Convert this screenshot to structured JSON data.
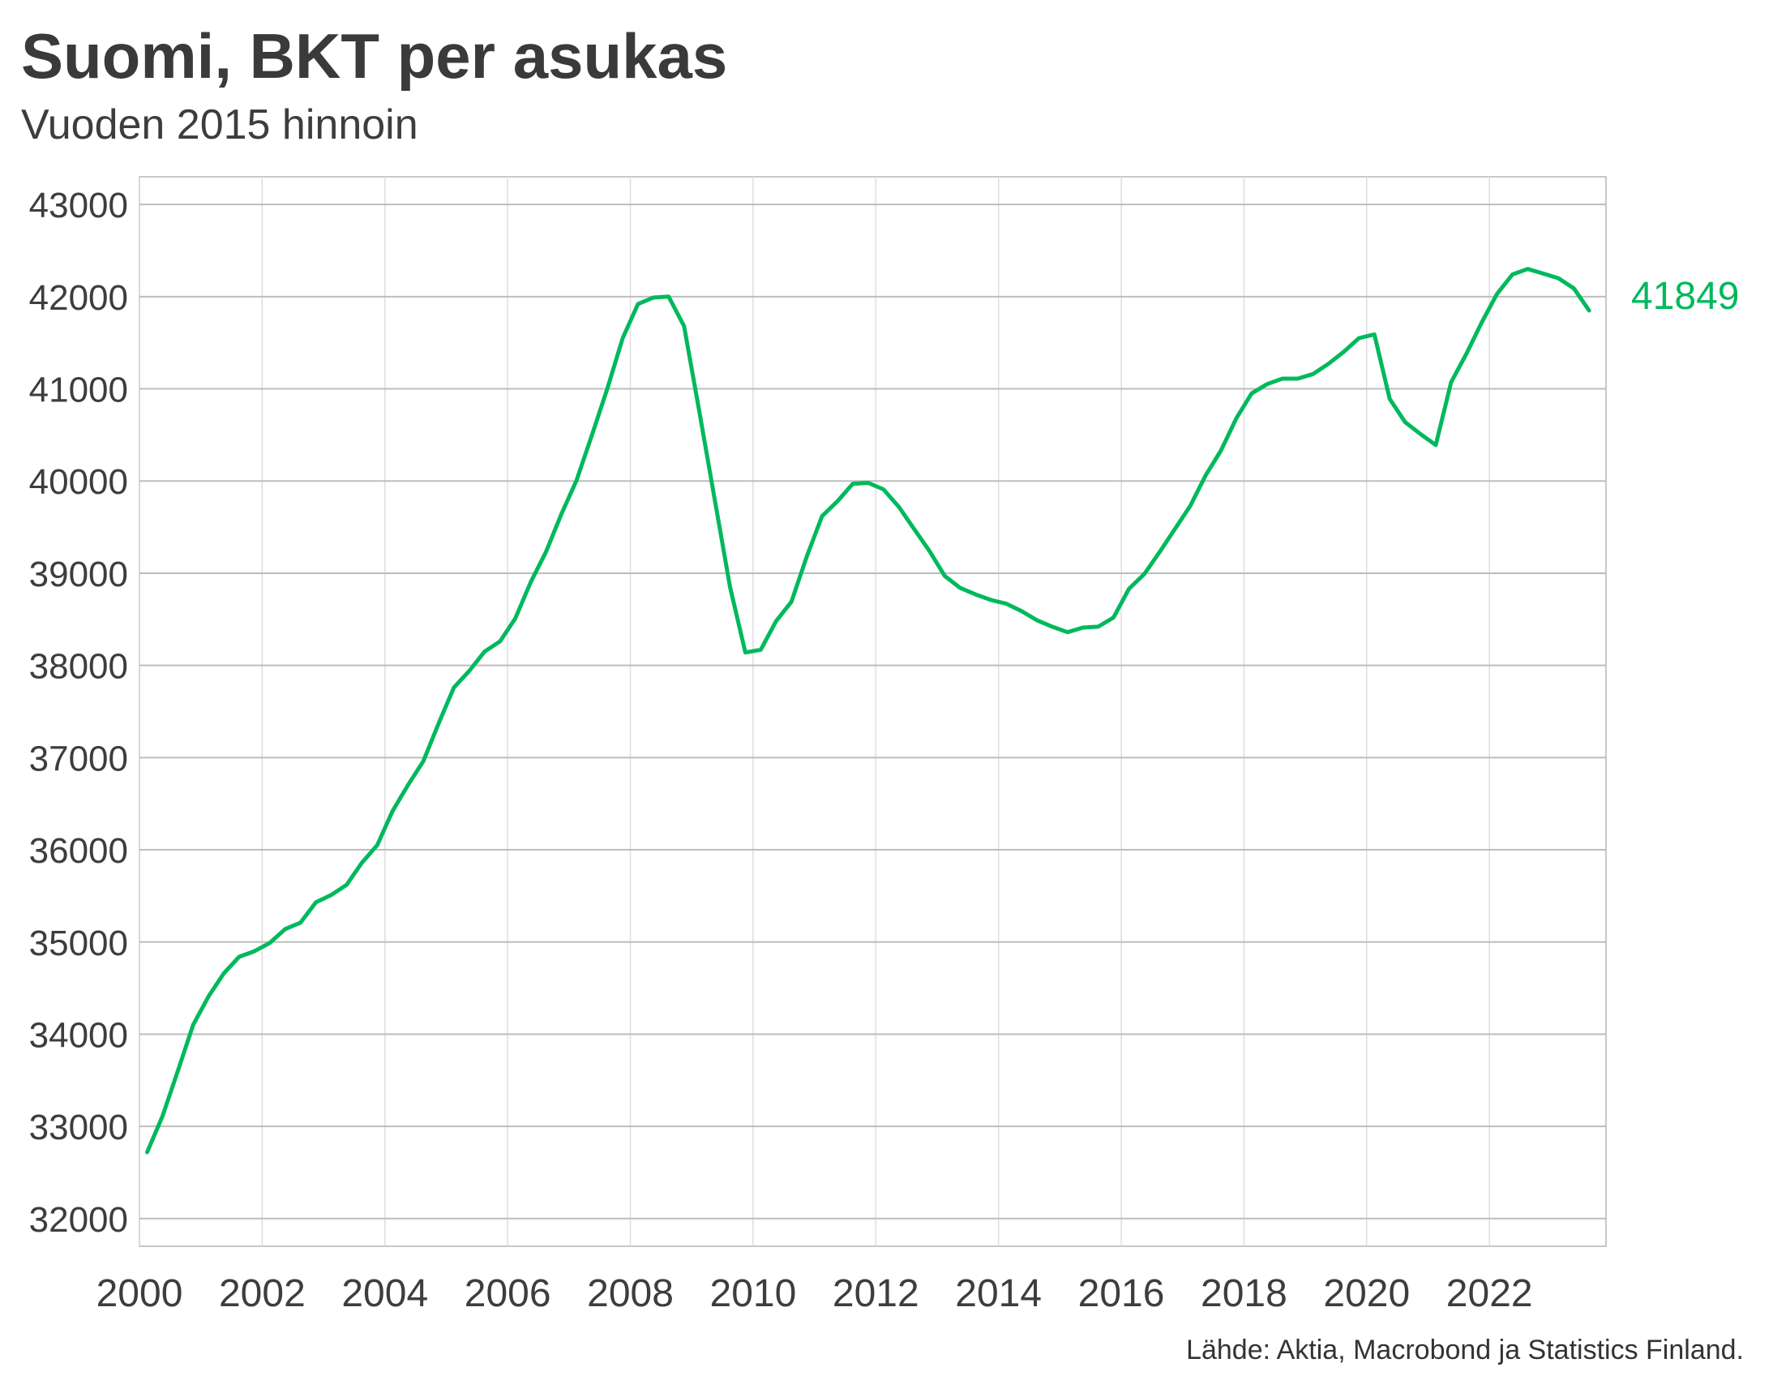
{
  "chart_data": {
    "type": "line",
    "title": "Suomi, BKT per asukas",
    "subtitle": "Vuoden 2015 hinnoin",
    "source": "Lähde: Aktia, Macrobond ja Statistics Finland.",
    "xlabel": "",
    "ylabel": "",
    "xlim": [
      2000,
      2023.9
    ],
    "ylim": [
      31700,
      43300
    ],
    "x_ticks": [
      2000,
      2002,
      2004,
      2006,
      2008,
      2010,
      2012,
      2014,
      2016,
      2018,
      2020,
      2022
    ],
    "y_ticks": [
      32000,
      33000,
      34000,
      35000,
      36000,
      37000,
      38000,
      39000,
      40000,
      41000,
      42000,
      43000
    ],
    "grid": true,
    "legend": "none",
    "end_label": "41849",
    "color": "#00b95c",
    "series": [
      {
        "x": [
          2000.125,
          2000.375,
          2000.625,
          2000.875,
          2001.125,
          2001.375,
          2001.625,
          2001.875,
          2002.125,
          2002.375,
          2002.625,
          2002.875,
          2003.125,
          2003.375,
          2003.625,
          2003.875,
          2004.125,
          2004.375,
          2004.625,
          2004.875,
          2005.125,
          2005.375,
          2005.625,
          2005.875,
          2006.125,
          2006.375,
          2006.625,
          2006.875,
          2007.125,
          2007.375,
          2007.625,
          2007.875,
          2008.125,
          2008.375,
          2008.625,
          2008.875,
          2009.125,
          2009.375,
          2009.625,
          2009.875,
          2010.125,
          2010.375,
          2010.625,
          2010.875,
          2011.125,
          2011.375,
          2011.625,
          2011.875,
          2012.125,
          2012.375,
          2012.625,
          2012.875,
          2013.125,
          2013.375,
          2013.625,
          2013.875,
          2014.125,
          2014.375,
          2014.625,
          2014.875,
          2015.125,
          2015.375,
          2015.625,
          2015.875,
          2016.125,
          2016.375,
          2016.625,
          2016.875,
          2017.125,
          2017.375,
          2017.625,
          2017.875,
          2018.125,
          2018.375,
          2018.625,
          2018.875,
          2019.125,
          2019.375,
          2019.625,
          2019.875,
          2020.125,
          2020.375,
          2020.625,
          2020.875,
          2021.125,
          2021.375,
          2021.625,
          2021.875,
          2022.125,
          2022.375,
          2022.625,
          2022.875,
          2023.125,
          2023.375,
          2023.625
        ],
        "values": [
          32720,
          33110,
          33600,
          34100,
          34410,
          34660,
          34840,
          34900,
          34990,
          35140,
          35210,
          35430,
          35510,
          35620,
          35860,
          36050,
          36420,
          36700,
          36960,
          37370,
          37760,
          37940,
          38150,
          38260,
          38510,
          38900,
          39230,
          39640,
          40010,
          40500,
          41000,
          41550,
          41920,
          41990,
          42000,
          41680,
          40750,
          39800,
          38850,
          38140,
          38170,
          38480,
          38690,
          39180,
          39620,
          39780,
          39970,
          39980,
          39910,
          39720,
          39480,
          39240,
          38970,
          38840,
          38770,
          38710,
          38670,
          38590,
          38490,
          38420,
          38360,
          38410,
          38420,
          38520,
          38830,
          38990,
          39230,
          39480,
          39730,
          40060,
          40330,
          40680,
          40950,
          41050,
          41110,
          41110,
          41160,
          41270,
          41400,
          41550,
          41590,
          40890,
          40640,
          40510,
          40390,
          41070,
          41380,
          41720,
          42030,
          42240,
          42300,
          42250,
          42200,
          42090,
          41849
        ]
      }
    ]
  }
}
